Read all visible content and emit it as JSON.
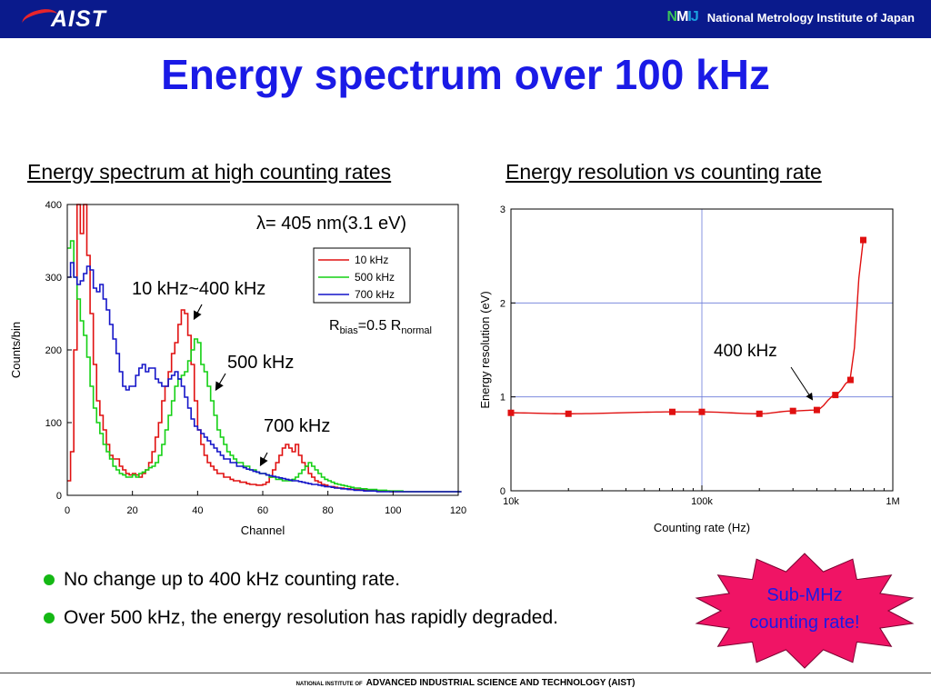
{
  "header": {
    "logo_text": "AIST",
    "nmij_mark": [
      "N",
      "M",
      "IJ"
    ],
    "institute": "National Metrology Institute of Japan"
  },
  "title": "Energy spectrum over 100 kHz",
  "subtitles": {
    "left": "Energy spectrum at high counting rates",
    "right": "Energy resolution vs counting rate"
  },
  "chart_data": [
    {
      "type": "line",
      "xlabel": "Channel",
      "ylabel": "Counts/bin",
      "xlim": [
        0,
        120
      ],
      "ylim": [
        0,
        400
      ],
      "xticks": [
        0,
        20,
        40,
        60,
        80,
        100,
        120
      ],
      "yticks": [
        0,
        100,
        200,
        300,
        400
      ],
      "legend": {
        "placement": "top-right",
        "entries": [
          "10 kHz",
          "500 kHz",
          "700 kHz"
        ]
      },
      "annotations": {
        "lambda_symbol": "λ",
        "lambda_value": "= 405 nm(3.1 eV)",
        "range_label": "10 kHz~400 kHz",
        "label_500": "500 kHz",
        "label_700": "700 kHz",
        "rbias_R": "R",
        "rbias_sub": "bias",
        "rbias_eq": "=0.5 R",
        "rbias_sub2": "normal"
      },
      "series": [
        {
          "name": "10 kHz",
          "color": "#e01010",
          "x": [
            0,
            1,
            2,
            3,
            4,
            5,
            6,
            7,
            8,
            9,
            10,
            11,
            12,
            13,
            14,
            15,
            16,
            17,
            18,
            19,
            20,
            21,
            22,
            23,
            24,
            25,
            26,
            27,
            28,
            29,
            30,
            31,
            32,
            33,
            34,
            35,
            36,
            37,
            38,
            39,
            40,
            41,
            42,
            43,
            44,
            45,
            46,
            47,
            48,
            49,
            50,
            51,
            52,
            53,
            54,
            55,
            56,
            57,
            58,
            59,
            60,
            61,
            62,
            63,
            64,
            65,
            66,
            67,
            68,
            69,
            70,
            71,
            72,
            73,
            74,
            75,
            76,
            77,
            78,
            79,
            80,
            81,
            82,
            83,
            84,
            85,
            86,
            87,
            88,
            89,
            90,
            91,
            92,
            93,
            94,
            95,
            96,
            97,
            98,
            99,
            100,
            101,
            102,
            103,
            104,
            105,
            106,
            107,
            108,
            109,
            110,
            111,
            112,
            113,
            114,
            115,
            116,
            117,
            118,
            119,
            120
          ],
          "values": [
            20,
            60,
            200,
            420,
            360,
            400,
            330,
            250,
            180,
            130,
            110,
            90,
            70,
            55,
            50,
            50,
            40,
            35,
            30,
            28,
            30,
            28,
            25,
            30,
            35,
            45,
            60,
            80,
            100,
            130,
            150,
            170,
            195,
            210,
            235,
            255,
            250,
            220,
            180,
            130,
            90,
            70,
            55,
            45,
            40,
            35,
            30,
            30,
            25,
            25,
            22,
            20,
            20,
            18,
            18,
            16,
            15,
            15,
            14,
            14,
            15,
            18,
            25,
            35,
            45,
            55,
            65,
            70,
            65,
            60,
            70,
            55,
            45,
            40,
            30,
            25,
            20,
            18,
            15,
            14,
            12,
            12,
            11,
            10,
            10,
            9,
            9,
            8,
            8,
            8,
            7,
            7,
            7,
            7,
            6,
            6,
            6,
            6,
            6,
            5,
            5,
            5,
            5,
            5,
            5,
            5,
            5,
            5,
            5,
            5,
            5,
            5,
            5,
            5,
            5,
            5,
            5,
            5,
            5,
            5,
            5
          ]
        },
        {
          "name": "500 kHz",
          "color": "#14d014",
          "x": [
            0,
            1,
            2,
            3,
            4,
            5,
            6,
            7,
            8,
            9,
            10,
            11,
            12,
            13,
            14,
            15,
            16,
            17,
            18,
            19,
            20,
            21,
            22,
            23,
            24,
            25,
            26,
            27,
            28,
            29,
            30,
            31,
            32,
            33,
            34,
            35,
            36,
            37,
            38,
            39,
            40,
            41,
            42,
            43,
            44,
            45,
            46,
            47,
            48,
            49,
            50,
            51,
            52,
            53,
            54,
            55,
            56,
            57,
            58,
            59,
            60,
            61,
            62,
            63,
            64,
            65,
            66,
            67,
            68,
            69,
            70,
            71,
            72,
            73,
            74,
            75,
            76,
            77,
            78,
            79,
            80,
            81,
            82,
            83,
            84,
            85,
            86,
            87,
            88,
            89,
            90,
            91,
            92,
            93,
            94,
            95,
            96,
            97,
            98,
            99,
            100,
            101,
            102,
            103,
            104,
            105,
            106,
            107,
            108,
            109,
            110,
            111,
            112,
            113,
            114,
            115,
            116,
            117,
            118,
            119,
            120
          ],
          "values": [
            340,
            350,
            300,
            270,
            240,
            220,
            190,
            150,
            120,
            100,
            85,
            70,
            60,
            50,
            40,
            35,
            30,
            28,
            25,
            25,
            28,
            25,
            30,
            32,
            35,
            38,
            40,
            45,
            55,
            70,
            90,
            110,
            130,
            150,
            160,
            165,
            170,
            185,
            200,
            215,
            210,
            180,
            170,
            150,
            130,
            110,
            90,
            80,
            70,
            60,
            55,
            50,
            45,
            45,
            40,
            40,
            35,
            35,
            32,
            30,
            30,
            28,
            25,
            25,
            22,
            22,
            20,
            20,
            20,
            22,
            25,
            30,
            35,
            40,
            45,
            40,
            35,
            30,
            25,
            22,
            20,
            18,
            16,
            15,
            14,
            13,
            12,
            11,
            10,
            10,
            9,
            9,
            8,
            8,
            8,
            7,
            7,
            7,
            6,
            6,
            6,
            6,
            6,
            5,
            5,
            5,
            5,
            5,
            5,
            5,
            5,
            5,
            5,
            5,
            5,
            5,
            5,
            5,
            5,
            5,
            5
          ]
        },
        {
          "name": "700 kHz",
          "color": "#1414c8",
          "x": [
            0,
            1,
            2,
            3,
            4,
            5,
            6,
            7,
            8,
            9,
            10,
            11,
            12,
            13,
            14,
            15,
            16,
            17,
            18,
            19,
            20,
            21,
            22,
            23,
            24,
            25,
            26,
            27,
            28,
            29,
            30,
            31,
            32,
            33,
            34,
            35,
            36,
            37,
            38,
            39,
            40,
            41,
            42,
            43,
            44,
            45,
            46,
            47,
            48,
            49,
            50,
            51,
            52,
            53,
            54,
            55,
            56,
            57,
            58,
            59,
            60,
            61,
            62,
            63,
            64,
            65,
            66,
            67,
            68,
            69,
            70,
            71,
            72,
            73,
            74,
            75,
            76,
            77,
            78,
            79,
            80,
            81,
            82,
            83,
            84,
            85,
            86,
            87,
            88,
            89,
            90,
            91,
            92,
            93,
            94,
            95,
            96,
            97,
            98,
            99,
            100,
            101,
            102,
            103,
            104,
            105,
            106,
            107,
            108,
            109,
            110,
            111,
            112,
            113,
            114,
            115,
            116,
            117,
            118,
            119,
            120
          ],
          "values": [
            300,
            320,
            300,
            290,
            295,
            305,
            315,
            310,
            285,
            280,
            290,
            270,
            255,
            235,
            215,
            195,
            170,
            150,
            145,
            150,
            150,
            165,
            175,
            180,
            170,
            175,
            175,
            160,
            155,
            150,
            150,
            160,
            165,
            170,
            160,
            150,
            135,
            120,
            105,
            95,
            90,
            85,
            80,
            75,
            70,
            65,
            60,
            55,
            50,
            50,
            45,
            45,
            40,
            40,
            38,
            36,
            35,
            33,
            32,
            30,
            30,
            28,
            27,
            26,
            25,
            24,
            23,
            22,
            21,
            20,
            20,
            19,
            18,
            17,
            16,
            15,
            15,
            14,
            13,
            12,
            12,
            11,
            10,
            10,
            9,
            9,
            8,
            8,
            7,
            7,
            7,
            6,
            6,
            6,
            6,
            5,
            5,
            5,
            5,
            5,
            5,
            5,
            5,
            5,
            5,
            5,
            5,
            5,
            5,
            5,
            5,
            5,
            5,
            5,
            5,
            5,
            5,
            5,
            5,
            5,
            5
          ]
        }
      ]
    },
    {
      "type": "scatter",
      "xlabel": "Counting rate (Hz)",
      "ylabel": "Energy resolution (eV)",
      "x_scale": "log",
      "xlim": [
        10000,
        1000000
      ],
      "ylim": [
        0,
        3
      ],
      "xticks": [
        "10k",
        "100k",
        "1M"
      ],
      "yticks": [
        0,
        1,
        2,
        3
      ],
      "annotation": "400 kHz",
      "series": [
        {
          "color": "#e01010",
          "x": [
            10000,
            20000,
            70000,
            100000,
            200000,
            300000,
            400000,
            500000,
            600000,
            700000
          ],
          "values": [
            0.83,
            0.82,
            0.84,
            0.84,
            0.82,
            0.85,
            0.86,
            1.02,
            1.18,
            2.67
          ]
        }
      ]
    }
  ],
  "bullets": [
    "No change up to 400 kHz counting rate.",
    "Over 500 kHz, the energy resolution has rapidly degraded."
  ],
  "callout": [
    "Sub-MHz",
    "counting rate!"
  ],
  "footer": {
    "small": "NATIONAL INSTITUTE OF",
    "main": "ADVANCED INDUSTRIAL SCIENCE AND TECHNOLOGY (AIST)"
  }
}
